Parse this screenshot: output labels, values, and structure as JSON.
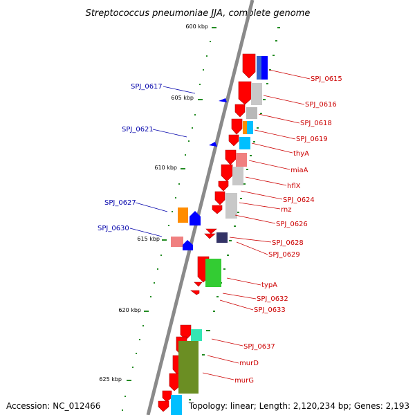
{
  "title": "Streptococcus pneumoniae JJA, complete genome",
  "accession_text": "Accession: NC_012466",
  "topology_text": "Topology: linear; Length: 2,120,234 bp; Genes: 2,193",
  "scale_labels": [
    "600 kbp",
    "605 kbp",
    "610 kbp",
    "615 kbp",
    "620 kbp",
    "625 kbp"
  ],
  "colors": {
    "backbone": "#8a8a8a",
    "forward_gene": "#ff0000",
    "reverse_gene": "#0000ff",
    "forward_label": "#cc0000",
    "reverse_label": "#0000aa",
    "tick": "#228b22",
    "cog_blue": "#3366cc",
    "cog_grey": "#b8b8b8",
    "cog_orange": "#ff8c00",
    "cog_cyan": "#00bfff",
    "cog_pink": "#f08080",
    "cog_green": "#33cc33",
    "cog_navy": "#333366",
    "cog_mint": "#33e6b3",
    "cog_olive": "#6b8e23"
  },
  "right_labels": [
    "SPJ_0615",
    "SPJ_0616",
    "SPJ_0618",
    "SPJ_0619",
    "thyA",
    "miaA",
    "hflX",
    "SPJ_0624",
    "rnz",
    "SPJ_0626",
    "SPJ_0628",
    "SPJ_0629",
    "typA",
    "SPJ_0632",
    "SPJ_0633",
    "SPJ_0637",
    "murD",
    "murG"
  ],
  "left_labels": [
    "SPJ_0617",
    "SPJ_0621",
    "SPJ_0627",
    "SPJ_0630"
  ]
}
